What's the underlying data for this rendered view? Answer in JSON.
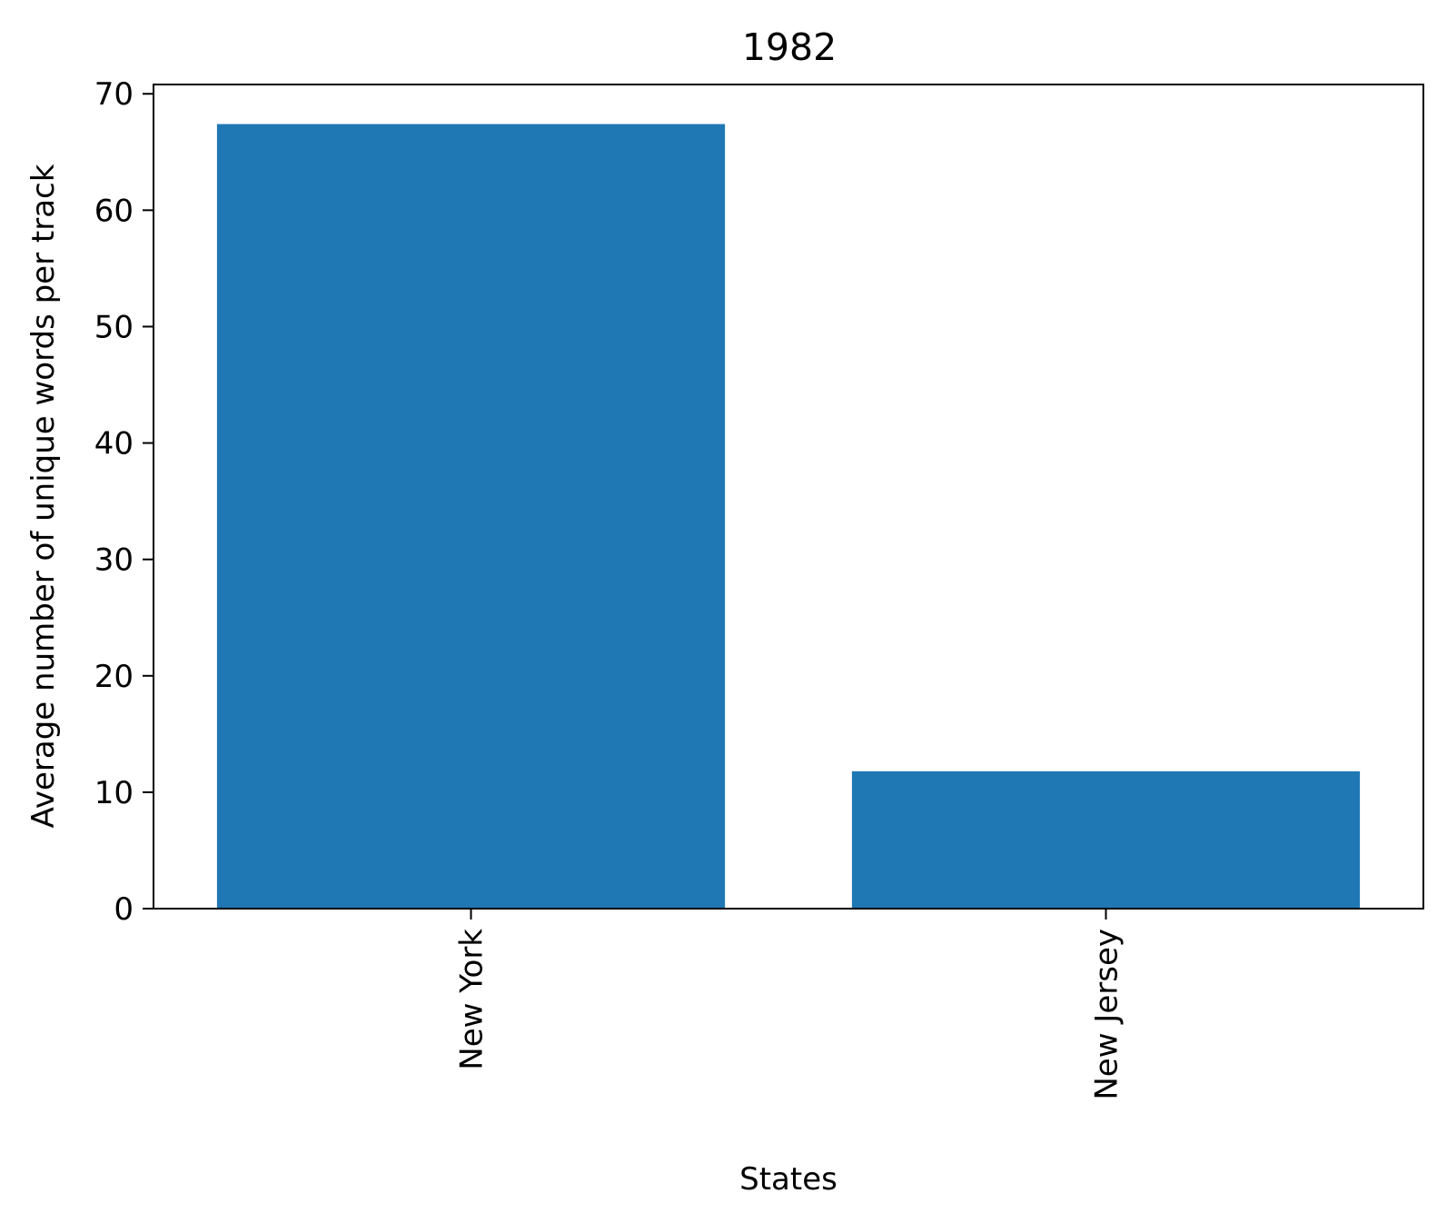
{
  "chart_data": {
    "type": "bar",
    "title": "1982",
    "xlabel": "States",
    "ylabel": "Average number of unique words per track",
    "categories": [
      "New York",
      "New Jersey"
    ],
    "values": [
      67.4,
      11.8
    ],
    "ylim": [
      0,
      70.8
    ],
    "yticks": [
      0,
      10,
      20,
      30,
      40,
      50,
      60,
      70
    ],
    "bar_color": "#1f77b4",
    "grid": false,
    "legend": "none",
    "xtick_rotation": "vertical"
  }
}
